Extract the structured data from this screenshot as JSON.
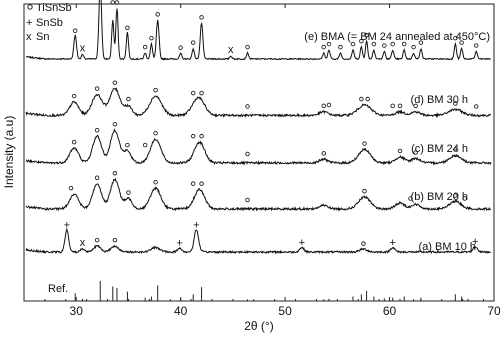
{
  "chart_data": {
    "type": "line",
    "xlabel": "2θ (°)",
    "ylabel": "Intensity (a.u)",
    "xlim": [
      25,
      70
    ],
    "x_ticks": [
      30,
      40,
      50,
      60,
      70
    ],
    "y_ticks_shown": false,
    "legend": {
      "placement": "top-left",
      "entries": [
        {
          "marker": "o",
          "label": "TiSnSb",
          "color": "#222222"
        },
        {
          "marker": "+",
          "label": "SnSb",
          "color": "#cc2288"
        },
        {
          "marker": "x",
          "label": "Sn",
          "color": "#1a9a50"
        }
      ]
    },
    "series": [
      {
        "name": "(e) BMA (= BM 24 annealed at 450°C)",
        "baseline": 0.815,
        "noise": 0.004,
        "peaks": [
          [
            29.9,
            0.08,
            0.18
          ],
          [
            30.6,
            0.015,
            0.15
          ],
          [
            32.3,
            0.25,
            0.18
          ],
          [
            33.5,
            0.13,
            0.15
          ],
          [
            33.9,
            0.17,
            0.15
          ],
          [
            34.9,
            0.09,
            0.15
          ],
          [
            36.6,
            0.02,
            0.15
          ],
          [
            37.2,
            0.05,
            0.15
          ],
          [
            37.8,
            0.13,
            0.18
          ],
          [
            40.0,
            0.018,
            0.15
          ],
          [
            41.2,
            0.035,
            0.15
          ],
          [
            42.0,
            0.12,
            0.18
          ],
          [
            44.8,
            0.01,
            0.15
          ],
          [
            46.4,
            0.02,
            0.15
          ],
          [
            53.7,
            0.02,
            0.15
          ],
          [
            54.2,
            0.03,
            0.15
          ],
          [
            55.3,
            0.02,
            0.15
          ],
          [
            56.5,
            0.03,
            0.15
          ],
          [
            57.3,
            0.04,
            0.15
          ],
          [
            57.8,
            0.06,
            0.15
          ],
          [
            58.5,
            0.03,
            0.15
          ],
          [
            59.5,
            0.025,
            0.15
          ],
          [
            60.3,
            0.03,
            0.15
          ],
          [
            61.4,
            0.03,
            0.15
          ],
          [
            62.3,
            0.02,
            0.15
          ],
          [
            63.0,
            0.035,
            0.15
          ],
          [
            66.3,
            0.05,
            0.15
          ],
          [
            66.9,
            0.035,
            0.15
          ],
          [
            68.3,
            0.025,
            0.15
          ]
        ],
        "markers": [
          {
            "x": 29.9,
            "dy": 0.095,
            "sym": "o"
          },
          {
            "x": 30.6,
            "dy": 0.035,
            "sym": "x"
          },
          {
            "x": 32.3,
            "dy": 0.265,
            "sym": "o"
          },
          {
            "x": 33.5,
            "dy": 0.19,
            "sym": "o"
          },
          {
            "x": 33.9,
            "dy": 0.19,
            "sym": "o"
          },
          {
            "x": 34.9,
            "dy": 0.105,
            "sym": "o"
          },
          {
            "x": 36.6,
            "dy": 0.04,
            "sym": "o"
          },
          {
            "x": 37.2,
            "dy": 0.07,
            "sym": "o"
          },
          {
            "x": 37.8,
            "dy": 0.15,
            "sym": "o"
          },
          {
            "x": 40.0,
            "dy": 0.038,
            "sym": "o"
          },
          {
            "x": 41.2,
            "dy": 0.055,
            "sym": "o"
          },
          {
            "x": 42.0,
            "dy": 0.14,
            "sym": "o"
          },
          {
            "x": 44.8,
            "dy": 0.03,
            "sym": "x"
          },
          {
            "x": 46.4,
            "dy": 0.04,
            "sym": "o"
          },
          {
            "x": 53.7,
            "dy": 0.04,
            "sym": "o"
          },
          {
            "x": 54.2,
            "dy": 0.05,
            "sym": "o"
          },
          {
            "x": 55.3,
            "dy": 0.04,
            "sym": "o"
          },
          {
            "x": 56.5,
            "dy": 0.05,
            "sym": "o"
          },
          {
            "x": 57.3,
            "dy": 0.06,
            "sym": "o"
          },
          {
            "x": 57.8,
            "dy": 0.08,
            "sym": "o"
          },
          {
            "x": 58.5,
            "dy": 0.05,
            "sym": "o"
          },
          {
            "x": 59.5,
            "dy": 0.045,
            "sym": "o"
          },
          {
            "x": 60.3,
            "dy": 0.05,
            "sym": "o"
          },
          {
            "x": 61.4,
            "dy": 0.05,
            "sym": "o"
          },
          {
            "x": 62.3,
            "dy": 0.04,
            "sym": "o"
          },
          {
            "x": 63.0,
            "dy": 0.055,
            "sym": "o"
          },
          {
            "x": 66.3,
            "dy": 0.07,
            "sym": "o"
          },
          {
            "x": 66.9,
            "dy": 0.055,
            "sym": "o"
          },
          {
            "x": 68.3,
            "dy": 0.045,
            "sym": "o"
          }
        ]
      },
      {
        "name": "(d) BM 30 h",
        "baseline": 0.625,
        "noise": 0.007,
        "peaks": [
          [
            29.8,
            0.045,
            0.6
          ],
          [
            32.0,
            0.07,
            0.7
          ],
          [
            33.7,
            0.09,
            0.7
          ],
          [
            35.0,
            0.03,
            0.5
          ],
          [
            37.6,
            0.065,
            0.8
          ],
          [
            41.7,
            0.06,
            0.8
          ],
          [
            53.7,
            0.012,
            0.6
          ],
          [
            57.6,
            0.035,
            0.9
          ],
          [
            61.0,
            0.012,
            0.6
          ],
          [
            62.5,
            0.012,
            0.6
          ],
          [
            66.3,
            0.02,
            0.9
          ]
        ],
        "markers": [
          {
            "x": 29.8,
            "dy": 0.065,
            "sym": "o"
          },
          {
            "x": 32.0,
            "dy": 0.09,
            "sym": "o"
          },
          {
            "x": 33.7,
            "dy": 0.11,
            "sym": "o"
          },
          {
            "x": 35.0,
            "dy": 0.055,
            "sym": "o"
          },
          {
            "x": 37.6,
            "dy": 0.085,
            "sym": "o"
          },
          {
            "x": 41.2,
            "dy": 0.075,
            "sym": "o"
          },
          {
            "x": 42.0,
            "dy": 0.075,
            "sym": "o"
          },
          {
            "x": 46.4,
            "dy": 0.03,
            "sym": "o"
          },
          {
            "x": 53.7,
            "dy": 0.032,
            "sym": "o"
          },
          {
            "x": 54.2,
            "dy": 0.035,
            "sym": "o"
          },
          {
            "x": 57.3,
            "dy": 0.055,
            "sym": "o"
          },
          {
            "x": 57.9,
            "dy": 0.055,
            "sym": "o"
          },
          {
            "x": 60.3,
            "dy": 0.032,
            "sym": "o"
          },
          {
            "x": 61.0,
            "dy": 0.032,
            "sym": "o"
          },
          {
            "x": 62.5,
            "dy": 0.032,
            "sym": "o"
          },
          {
            "x": 66.3,
            "dy": 0.04,
            "sym": "o"
          },
          {
            "x": 68.3,
            "dy": 0.03,
            "sym": "o"
          }
        ]
      },
      {
        "name": "(c) BM 24 h",
        "baseline": 0.465,
        "noise": 0.007,
        "peaks": [
          [
            29.8,
            0.05,
            0.6
          ],
          [
            32.0,
            0.09,
            0.6
          ],
          [
            33.7,
            0.11,
            0.6
          ],
          [
            34.9,
            0.04,
            0.5
          ],
          [
            37.6,
            0.08,
            0.7
          ],
          [
            41.8,
            0.07,
            0.7
          ],
          [
            53.7,
            0.012,
            0.6
          ],
          [
            57.6,
            0.045,
            0.8
          ],
          [
            61.0,
            0.02,
            0.6
          ],
          [
            62.5,
            0.015,
            0.6
          ],
          [
            66.3,
            0.025,
            0.8
          ]
        ],
        "markers": [
          {
            "x": 29.8,
            "dy": 0.07,
            "sym": "o"
          },
          {
            "x": 32.0,
            "dy": 0.11,
            "sym": "o"
          },
          {
            "x": 33.7,
            "dy": 0.13,
            "sym": "o"
          },
          {
            "x": 34.9,
            "dy": 0.06,
            "sym": "o"
          },
          {
            "x": 36.6,
            "dy": 0.06,
            "sym": "o"
          },
          {
            "x": 37.6,
            "dy": 0.1,
            "sym": "o"
          },
          {
            "x": 41.2,
            "dy": 0.09,
            "sym": "o"
          },
          {
            "x": 42.0,
            "dy": 0.09,
            "sym": "o"
          },
          {
            "x": 46.4,
            "dy": 0.03,
            "sym": "o"
          },
          {
            "x": 53.7,
            "dy": 0.032,
            "sym": "o"
          },
          {
            "x": 57.6,
            "dy": 0.065,
            "sym": "o"
          },
          {
            "x": 61.0,
            "dy": 0.04,
            "sym": "o"
          },
          {
            "x": 62.5,
            "dy": 0.035,
            "sym": "o"
          },
          {
            "x": 66.3,
            "dy": 0.045,
            "sym": "o"
          }
        ]
      },
      {
        "name": "(b) BM 20 h",
        "baseline": 0.31,
        "noise": 0.007,
        "peaks": [
          [
            29.8,
            0.05,
            0.6
          ],
          [
            32.0,
            0.085,
            0.6
          ],
          [
            33.7,
            0.1,
            0.6
          ],
          [
            35.0,
            0.035,
            0.5
          ],
          [
            37.6,
            0.07,
            0.7
          ],
          [
            41.8,
            0.065,
            0.7
          ],
          [
            53.7,
            0.012,
            0.6
          ],
          [
            57.6,
            0.04,
            0.8
          ],
          [
            61.0,
            0.02,
            0.6
          ],
          [
            62.5,
            0.015,
            0.6
          ],
          [
            66.3,
            0.025,
            0.8
          ]
        ],
        "markers": [
          {
            "x": 29.5,
            "dy": 0.07,
            "sym": "o"
          },
          {
            "x": 32.0,
            "dy": 0.105,
            "sym": "o"
          },
          {
            "x": 33.7,
            "dy": 0.12,
            "sym": "o"
          },
          {
            "x": 35.0,
            "dy": 0.055,
            "sym": "o"
          },
          {
            "x": 37.6,
            "dy": 0.09,
            "sym": "o"
          },
          {
            "x": 41.2,
            "dy": 0.085,
            "sym": "o"
          },
          {
            "x": 42.0,
            "dy": 0.085,
            "sym": "o"
          },
          {
            "x": 46.4,
            "dy": 0.03,
            "sym": "o"
          },
          {
            "x": 57.6,
            "dy": 0.06,
            "sym": "o"
          },
          {
            "x": 62.0,
            "dy": 0.035,
            "sym": "o"
          },
          {
            "x": 66.3,
            "dy": 0.045,
            "sym": "o"
          },
          {
            "x": 67.2,
            "dy": 0.035,
            "sym": "o"
          }
        ]
      },
      {
        "name": "(a) BM 10 h",
        "baseline": 0.165,
        "noise": 0.006,
        "peaks": [
          [
            29.1,
            0.075,
            0.25
          ],
          [
            30.6,
            0.01,
            0.3
          ],
          [
            32.0,
            0.02,
            0.5
          ],
          [
            33.7,
            0.02,
            0.5
          ],
          [
            37.6,
            0.015,
            0.6
          ],
          [
            39.9,
            0.012,
            0.3
          ],
          [
            41.5,
            0.075,
            0.3
          ],
          [
            51.6,
            0.015,
            0.3
          ],
          [
            57.5,
            0.01,
            0.5
          ],
          [
            60.3,
            0.015,
            0.3
          ],
          [
            68.2,
            0.018,
            0.3
          ]
        ],
        "markers": [
          {
            "x": 29.1,
            "dy": 0.09,
            "sym": "+"
          },
          {
            "x": 30.6,
            "dy": 0.03,
            "sym": "x"
          },
          {
            "x": 32.0,
            "dy": 0.04,
            "sym": "o"
          },
          {
            "x": 33.7,
            "dy": 0.04,
            "sym": "o"
          },
          {
            "x": 39.9,
            "dy": 0.028,
            "sym": "+"
          },
          {
            "x": 41.5,
            "dy": 0.09,
            "sym": "+"
          },
          {
            "x": 51.6,
            "dy": 0.03,
            "sym": "+"
          },
          {
            "x": 57.5,
            "dy": 0.028,
            "sym": "o"
          },
          {
            "x": 60.3,
            "dy": 0.03,
            "sym": "+"
          },
          {
            "x": 68.2,
            "dy": 0.033,
            "sym": "+"
          }
        ]
      }
    ],
    "reference": {
      "label": "Ref.",
      "lines": [
        [
          29.9,
          0.35
        ],
        [
          30.6,
          0.1
        ],
        [
          32.3,
          0.9
        ],
        [
          33.5,
          0.65
        ],
        [
          33.9,
          0.58
        ],
        [
          34.9,
          0.42
        ],
        [
          36.6,
          0.15
        ],
        [
          37.2,
          0.2
        ],
        [
          37.8,
          0.7
        ],
        [
          40.0,
          0.08
        ],
        [
          41.2,
          0.3
        ],
        [
          42.0,
          0.62
        ],
        [
          46.4,
          0.07
        ],
        [
          53.7,
          0.08
        ],
        [
          54.2,
          0.1
        ],
        [
          56.5,
          0.2
        ],
        [
          57.3,
          0.3
        ],
        [
          57.8,
          0.45
        ],
        [
          58.5,
          0.2
        ],
        [
          59.5,
          0.12
        ],
        [
          60.3,
          0.15
        ],
        [
          61.4,
          0.2
        ],
        [
          62.3,
          0.08
        ],
        [
          63.0,
          0.15
        ],
        [
          66.3,
          0.3
        ],
        [
          66.9,
          0.2
        ],
        [
          67.5,
          0.1
        ]
      ]
    }
  }
}
